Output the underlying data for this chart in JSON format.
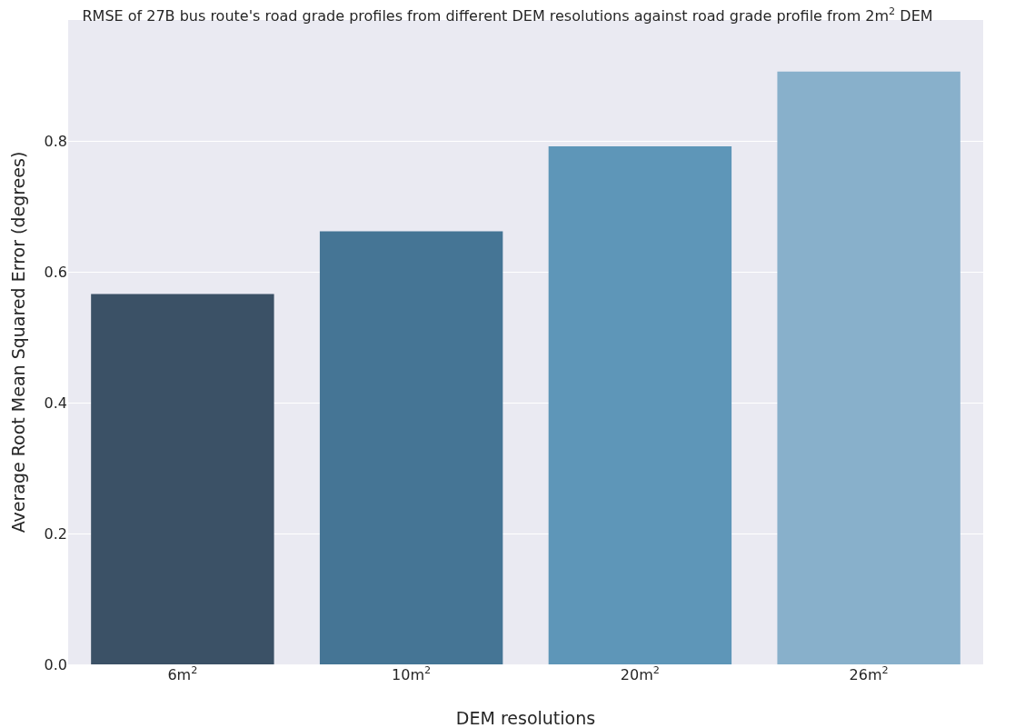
{
  "chart_data": {
    "type": "bar",
    "title": "RMSE of 27B bus route's road grade profiles from different DEM resolutions against road grade profile from 2m$^{2}$ DEM",
    "xlabel": "DEM resolutions",
    "ylabel": "Average Root Mean Squared Error (degrees)",
    "categories": [
      "6m$^{2}$",
      "10m$^{2}$",
      "20m$^{2}$",
      "26m$^{2}$"
    ],
    "values": [
      0.566,
      0.662,
      0.792,
      0.906
    ],
    "colors": [
      "#3b5166",
      "#457595",
      "#5e96b8",
      "#88b0cb"
    ],
    "ylim": [
      0,
      0.985
    ],
    "yticks": [
      {
        "value": 0,
        "label": "0.0"
      },
      0.2,
      0.4,
      0.6,
      0.8
    ],
    "grid": "y"
  }
}
